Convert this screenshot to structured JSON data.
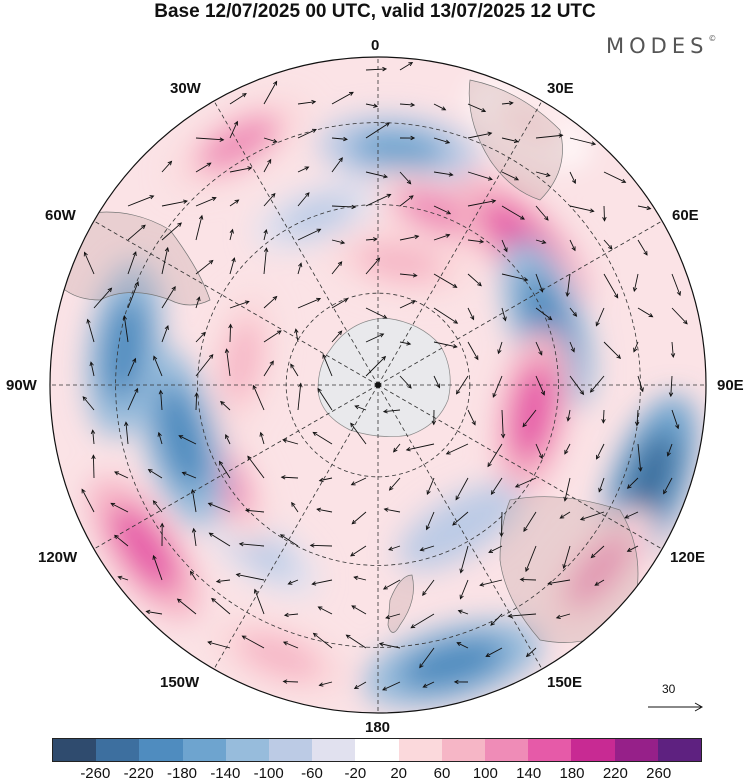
{
  "title": "Base 12/07/2025 00 UTC, valid 13/07/2025 12 UTC",
  "brand": "MODES",
  "brand_mark": "©",
  "longitude_labels": {
    "top": "0",
    "top_left": "30W",
    "top_right": "30E",
    "upper_left": "60W",
    "upper_right": "60E",
    "left": "90W",
    "right": "90E",
    "lower_left": "120W",
    "lower_right": "120E",
    "bottom_left": "150W",
    "bottom_right": "150E",
    "bottom": "180"
  },
  "reference_vector": {
    "value": "30"
  },
  "colorbar": {
    "colors": [
      "#2f4b6e",
      "#3d6f9f",
      "#4f8cbf",
      "#6ea4cf",
      "#97bcdc",
      "#bccbe5",
      "#e1e1ef",
      "#ffffff",
      "#fbd9dc",
      "#f6b6c6",
      "#ef8cb7",
      "#e65aa8",
      "#c82a93",
      "#962089",
      "#5e2180"
    ],
    "ticks": [
      "-260",
      "-220",
      "-180",
      "-140",
      "-100",
      "-60",
      "-20",
      "20",
      "60",
      "100",
      "140",
      "180",
      "220",
      "260"
    ]
  },
  "anomalies": [
    {
      "lon": 5,
      "lat_r": 0.72,
      "value": -140
    },
    {
      "lon": 20,
      "lat_r": 0.56,
      "value": 140
    },
    {
      "lon": 45,
      "lat_r": 0.62,
      "value": 180
    },
    {
      "lon": 30,
      "lat_r": 0.92,
      "value": 60
    },
    {
      "lon": 70,
      "lat_r": 0.55,
      "value": -180
    },
    {
      "lon": 100,
      "lat_r": 0.48,
      "value": 160
    },
    {
      "lon": 110,
      "lat_r": 0.88,
      "value": -220
    },
    {
      "lon": 130,
      "lat_r": 0.88,
      "value": 120
    },
    {
      "lon": 165,
      "lat_r": 0.88,
      "value": -200
    },
    {
      "lon": 200,
      "lat_r": 0.88,
      "value": 100
    },
    {
      "lon": 215,
      "lat_r": 0.62,
      "value": -60
    },
    {
      "lon": 235,
      "lat_r": 0.87,
      "value": 160
    },
    {
      "lon": 240,
      "lat_r": 0.55,
      "value": 120
    },
    {
      "lon": 255,
      "lat_r": 0.62,
      "value": -200
    },
    {
      "lon": 278,
      "lat_r": 0.78,
      "value": -180
    },
    {
      "lon": 280,
      "lat_r": 0.42,
      "value": 80
    },
    {
      "lon": 330,
      "lat_r": 0.85,
      "value": 120
    },
    {
      "lon": 340,
      "lat_r": 0.55,
      "value": -60
    },
    {
      "lon": 10,
      "lat_r": 0.38,
      "value": 100
    },
    {
      "lon": 150,
      "lat_r": 0.5,
      "value": -80
    }
  ]
}
